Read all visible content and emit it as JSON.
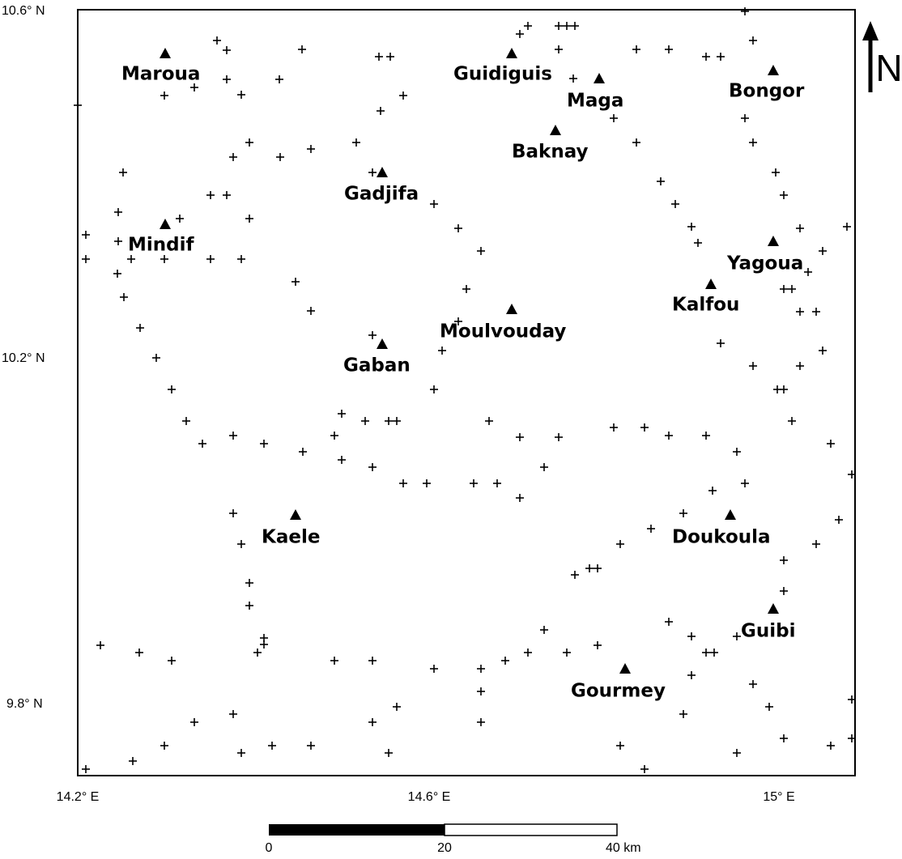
{
  "axes": {
    "lat_labels": [
      "10.6° N",
      "10.2° N",
      "9.8° N"
    ],
    "lon_labels": [
      "14.2° E",
      "14.6° E",
      "15° E"
    ]
  },
  "north": "N",
  "scale_bar": {
    "labels": [
      "0",
      "20",
      "40 km"
    ]
  },
  "towns": [
    "Maroua",
    "Guidiguis",
    "Maga",
    "Bongor",
    "Baknay",
    "Gadjifa",
    "Mindif",
    "Yagoua",
    "Kalfou",
    "Moulvouday",
    "Gaban",
    "Kaele",
    "Doukoula",
    "Guibi",
    "Gourmey"
  ]
}
